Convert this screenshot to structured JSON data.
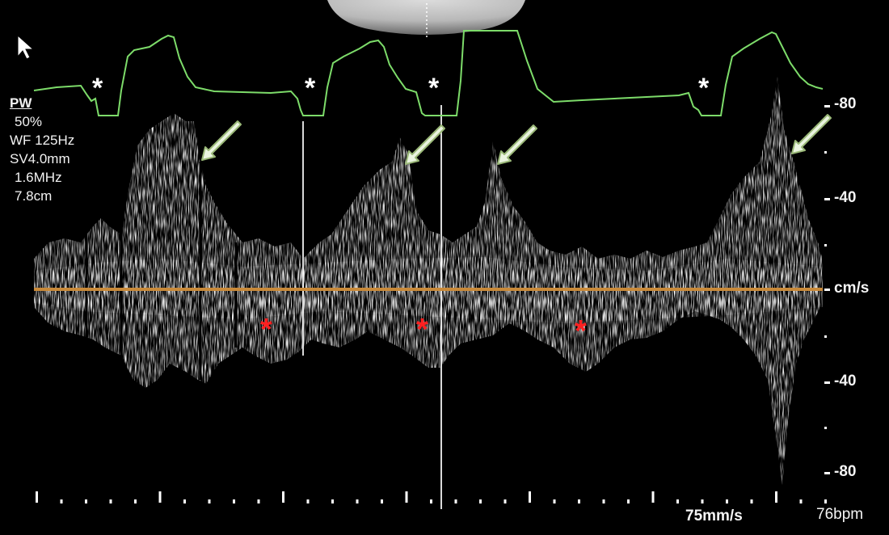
{
  "parameters": {
    "mode": "PW",
    "power": "50%",
    "wall_filter": "WF 125Hz",
    "sample_volume": "SV4.0mm",
    "frequency": "1.6MHz",
    "depth": "7.8cm"
  },
  "velocity_scale": {
    "unit": "cm/s",
    "ticks": [
      "-80",
      "-40",
      "-40",
      "-80"
    ]
  },
  "footer": {
    "sweep_speed": "75mm/s",
    "heart_rate": "76bpm"
  },
  "markers": {
    "white_star": "*",
    "red_star": "*"
  },
  "colors": {
    "ecg_trace": "#7ddc6a",
    "baseline": "#c98a3a",
    "red_marker": "#ff2020",
    "arrow_fill": "#eaf4e0",
    "arrow_stroke": "#9ab878"
  },
  "icons": [
    "mouse-cursor-icon",
    "arrow-icon"
  ]
}
